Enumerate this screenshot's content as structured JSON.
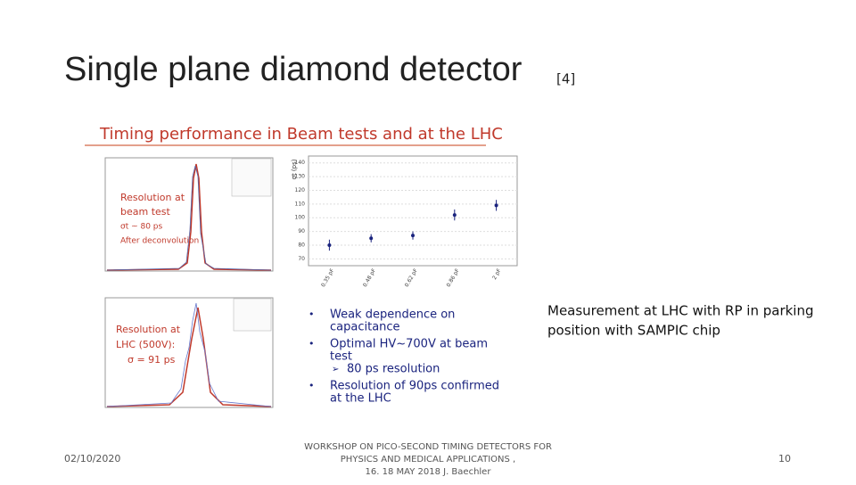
{
  "slide": {
    "title": "Single plane diamond detector",
    "title_ref": "[4]",
    "figure": {
      "heading": "Timing performance in Beam tests and at the LHC",
      "beam_test_label": [
        "Resolution at",
        "beam test",
        "σt ~ 80 ps",
        "After deconvolution"
      ],
      "lhc_label": [
        "Resolution at",
        "LHC (500V):",
        "σ = 91 ps"
      ],
      "bullets": [
        {
          "text": [
            "Weak dependence on",
            "capacitance"
          ],
          "sub": null
        },
        {
          "text": [
            "Optimal HV~700V at beam",
            "test"
          ],
          "sub": "80 ps resolution"
        },
        {
          "text": [
            "Resolution of 90ps confirmed",
            "at the LHC"
          ],
          "sub": null
        }
      ],
      "chart_data": {
        "type": "scatter",
        "y_label": "σt (ps)",
        "categories": [
          "0.35 pF",
          "0.48 pF",
          "0.62 pF",
          "0.86 pF",
          "2 pF"
        ],
        "values": [
          80,
          85,
          87,
          102,
          109
        ],
        "errors": [
          4,
          3,
          3,
          4,
          4
        ],
        "color": "#1a237e",
        "ylim": [
          65,
          145
        ],
        "yticks": [
          70,
          80,
          90,
          100,
          110,
          120,
          130,
          140
        ],
        "grid": true
      }
    },
    "note": [
      "Measurement at LHC with RP in parking",
      "position with SAMPIC chip"
    ],
    "footer": {
      "date": "02/10/2020",
      "center": [
        "WORKSHOP ON PICO-SECOND TIMING DETECTORS FOR",
        "PHYSICS AND MEDICAL APPLICATIONS ,",
        "16. 18 MAY 2018 J. Baechler"
      ],
      "page": "10"
    }
  }
}
